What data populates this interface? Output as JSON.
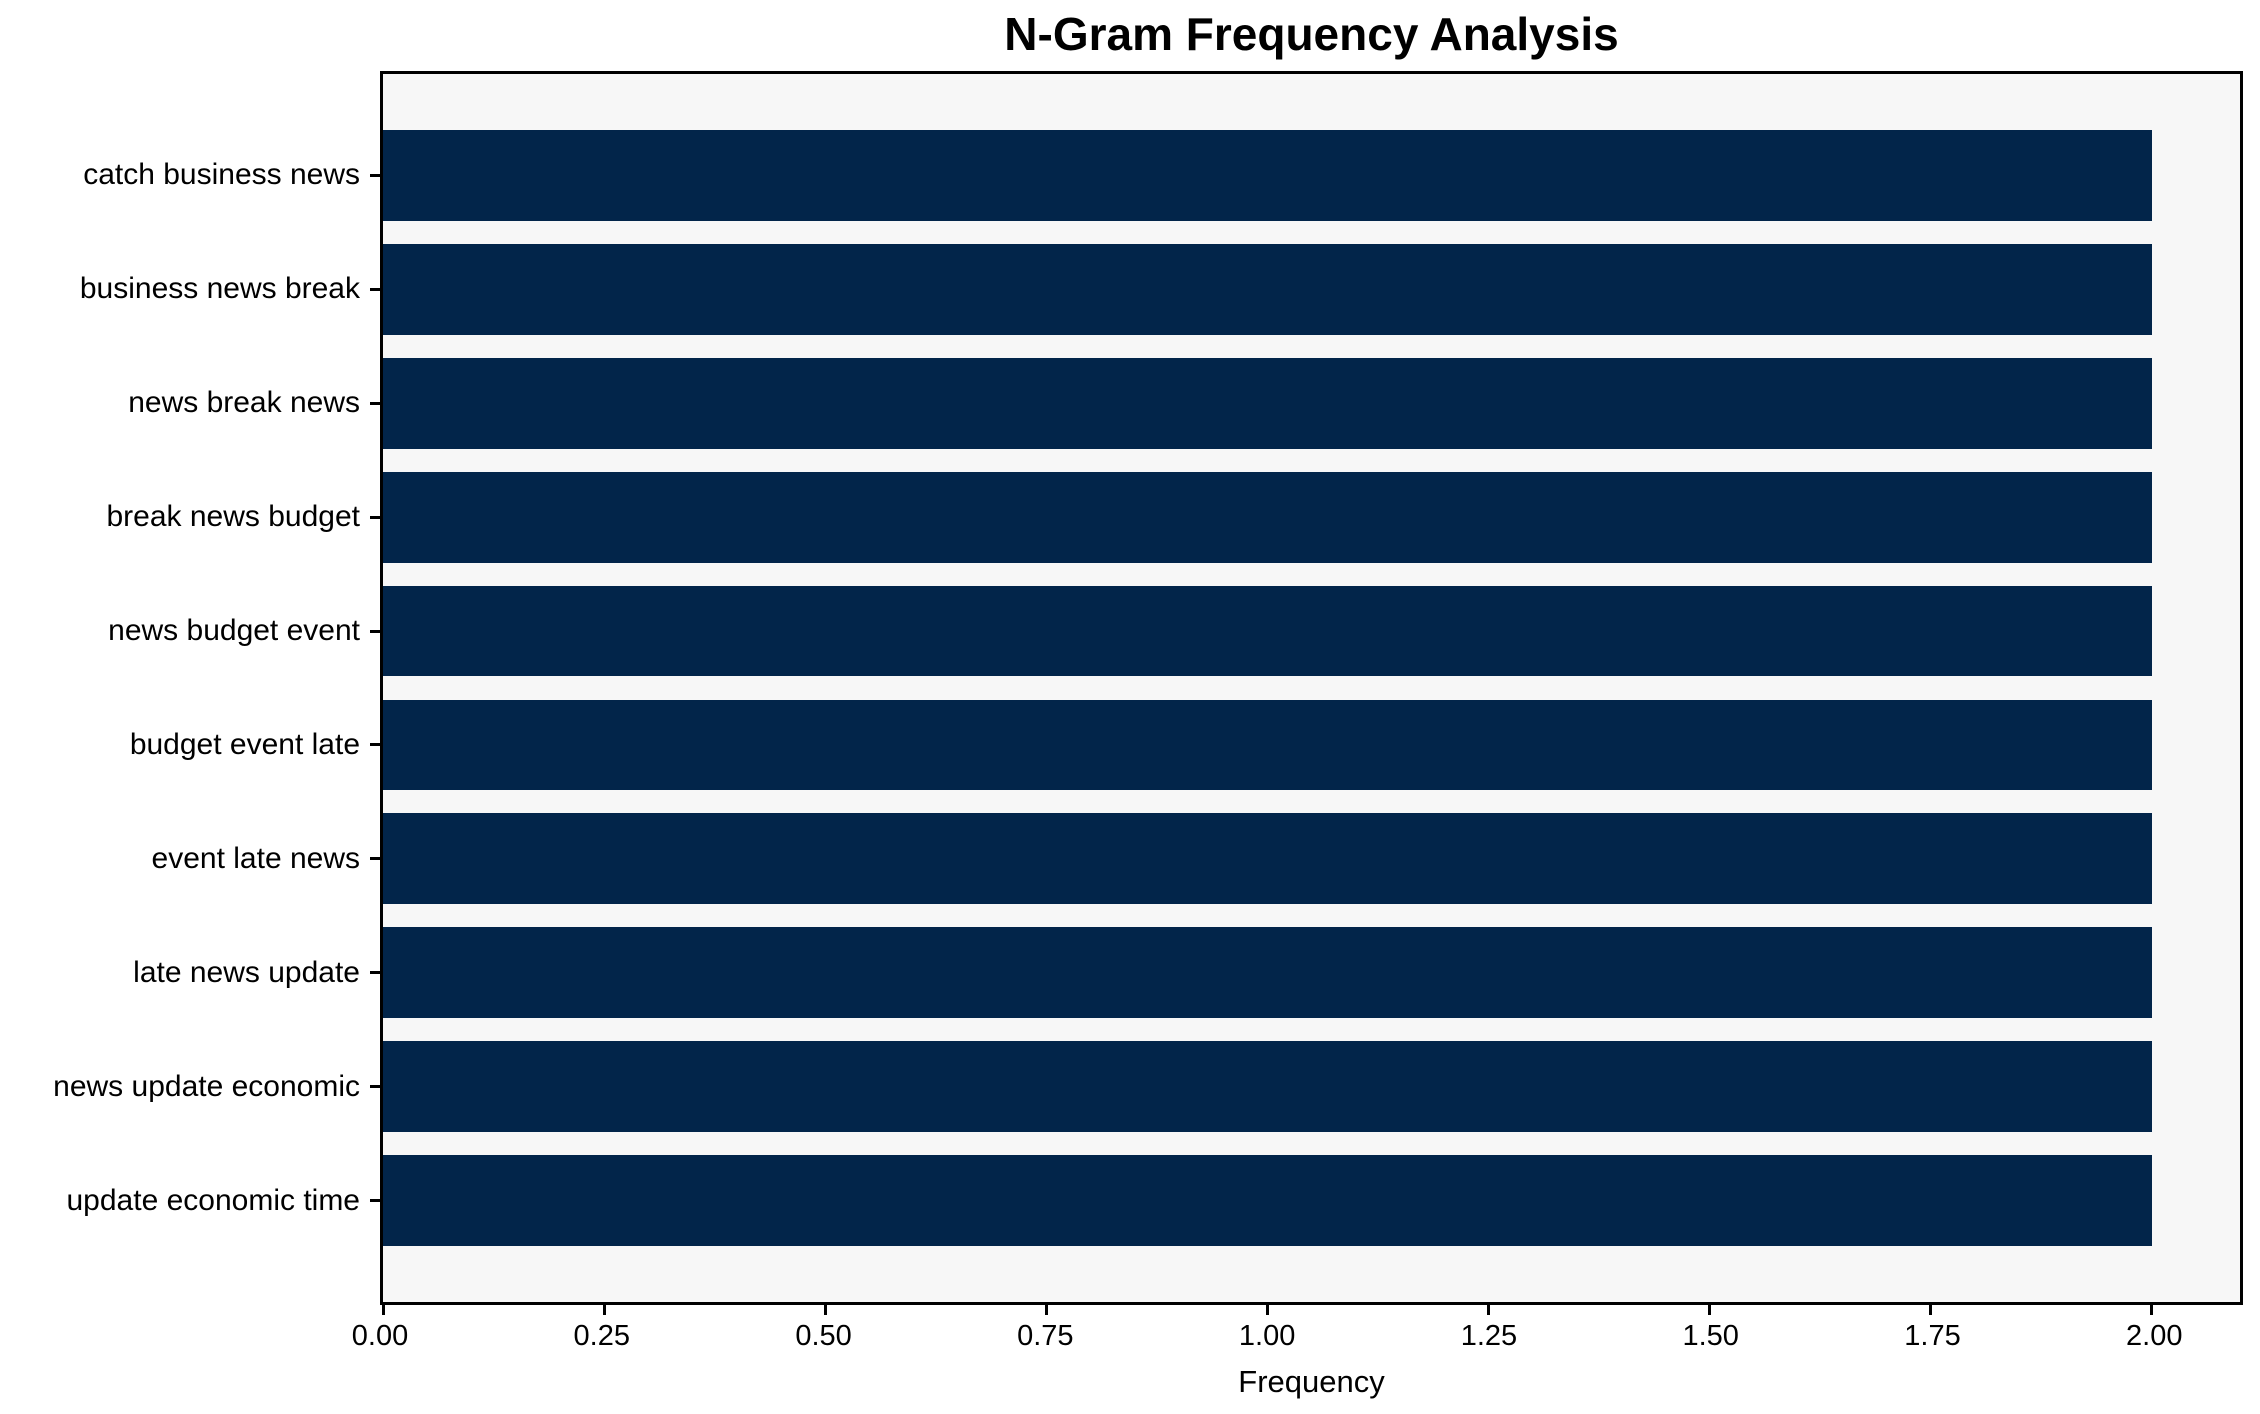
{
  "chart_data": {
    "type": "bar",
    "orientation": "horizontal",
    "title": "N-Gram Frequency Analysis",
    "xlabel": "Frequency",
    "ylabel": "",
    "categories": [
      "catch business news",
      "business news break",
      "news break news",
      "break news budget",
      "news budget event",
      "budget event late",
      "event late news",
      "late news update",
      "news update economic",
      "update economic time"
    ],
    "values": [
      2,
      2,
      2,
      2,
      2,
      2,
      2,
      2,
      2,
      2
    ],
    "xlim": [
      0,
      2.1
    ],
    "xticks": [
      0.0,
      0.25,
      0.5,
      0.75,
      1.0,
      1.25,
      1.5,
      1.75,
      2.0
    ],
    "xtick_labels": [
      "0.00",
      "0.25",
      "0.50",
      "0.75",
      "1.00",
      "1.25",
      "1.50",
      "1.75",
      "2.00"
    ],
    "grid": false,
    "legend": null,
    "colors": {
      "bar": "#02254a",
      "plot_background": "#f7f7f7",
      "figure_background": "#ffffff",
      "axis": "#000000",
      "text": "#000000"
    }
  }
}
